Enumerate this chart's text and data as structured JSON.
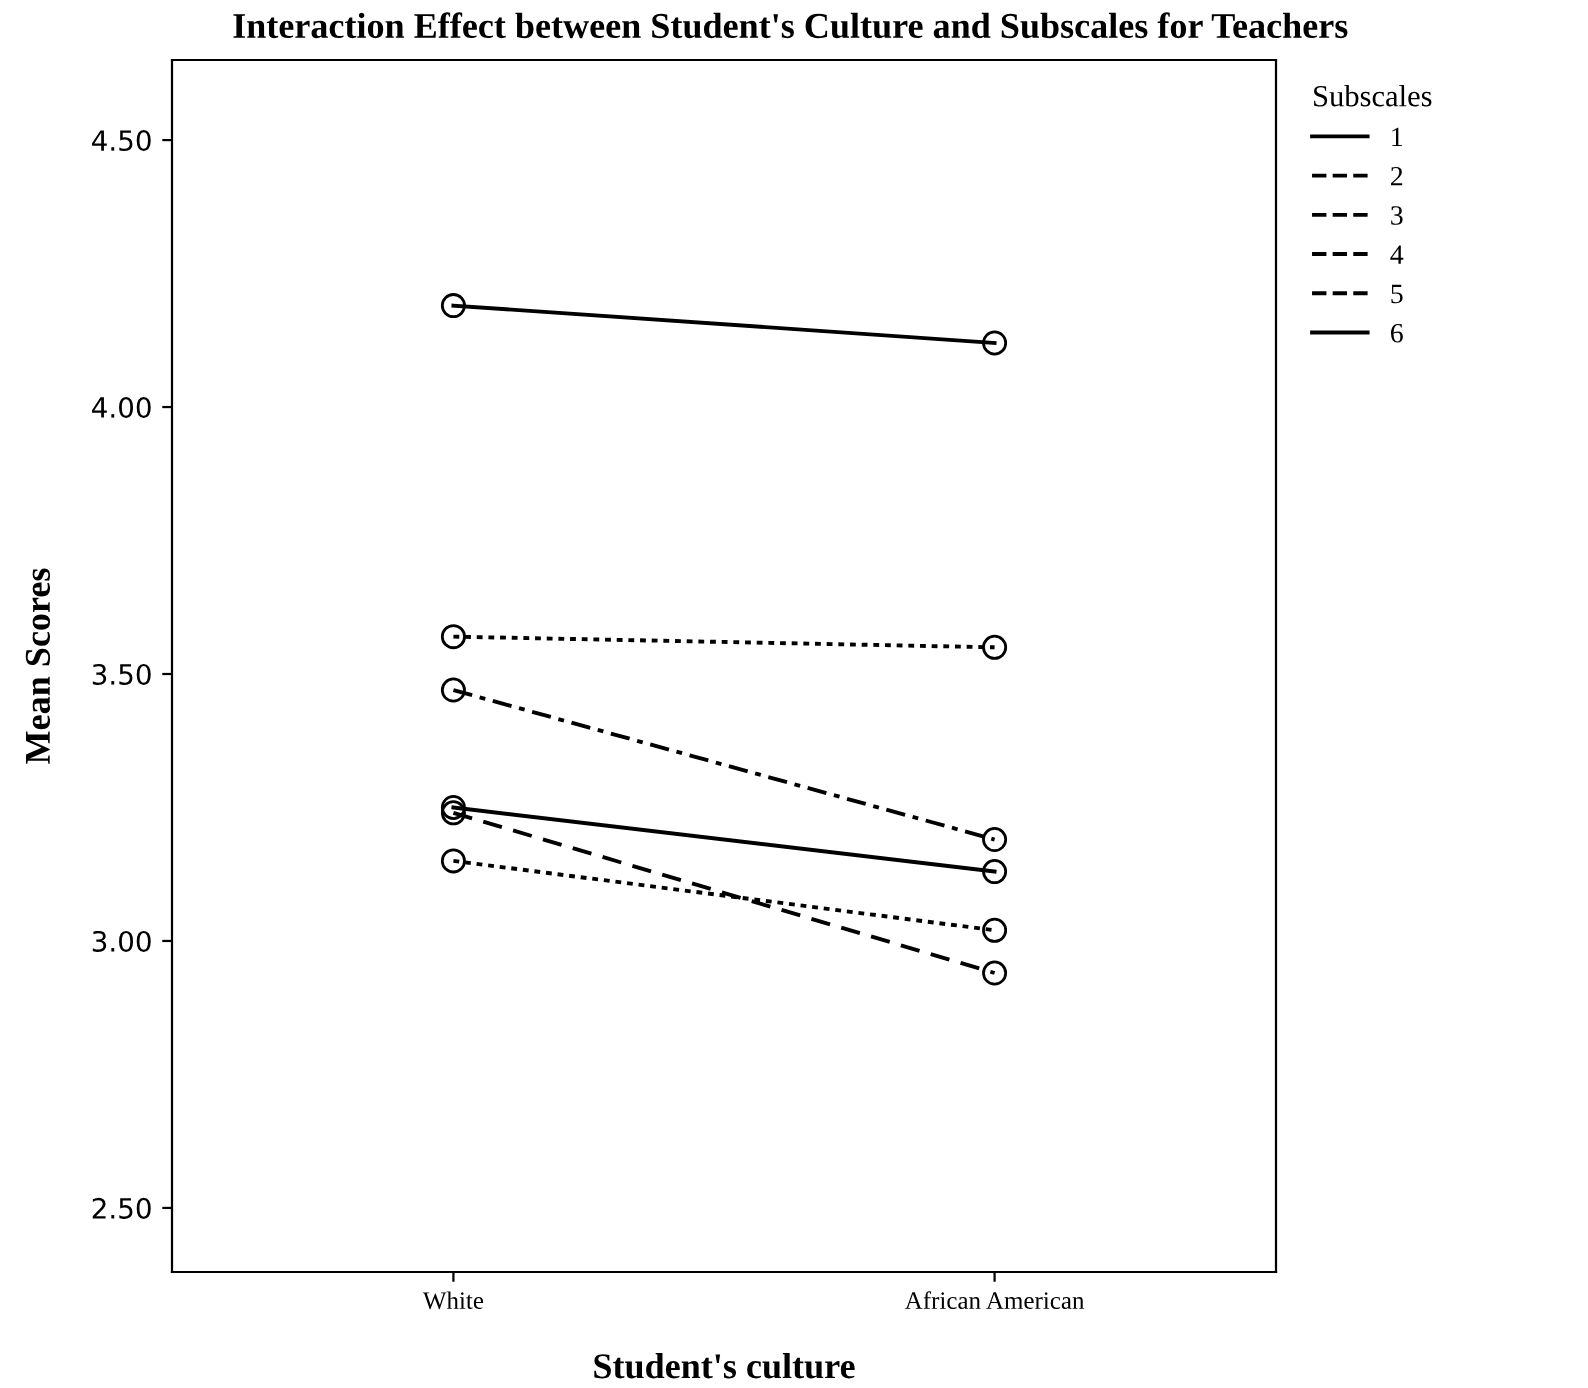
{
  "chart_data": {
    "type": "line",
    "title": "Interaction Effect between Student's Culture and Subscales for Teachers",
    "xlabel": "Student's culture",
    "ylabel": "Mean Scores",
    "legend_title": "Subscales",
    "categories": [
      "White",
      "African American"
    ],
    "series": [
      {
        "name": "1",
        "color": "#000000",
        "line_style": "solid",
        "values": [
          4.19,
          4.12
        ]
      },
      {
        "name": "2",
        "color": "#000000",
        "line_style": "dotted",
        "values": [
          3.57,
          3.55
        ]
      },
      {
        "name": "3",
        "color": "#000000",
        "line_style": "dashed",
        "values": [
          3.24,
          2.94
        ]
      },
      {
        "name": "4",
        "color": "#000000",
        "line_style": "dashdot",
        "values": [
          3.47,
          3.19
        ]
      },
      {
        "name": "5",
        "color": "#000000",
        "line_style": "dotted",
        "values": [
          3.15,
          3.02
        ]
      },
      {
        "name": "6",
        "color": "#000000",
        "line_style": "solid",
        "values": [
          3.25,
          3.13
        ]
      }
    ],
    "ylim": [
      2.38,
      4.65
    ],
    "yticks": [
      {
        "value": 2.5,
        "label": "2.50"
      },
      {
        "value": 3.0,
        "label": "3.00"
      },
      {
        "value": 3.5,
        "label": "3.50"
      },
      {
        "value": 4.0,
        "label": "4.00"
      },
      {
        "value": 4.5,
        "label": "4.50"
      }
    ],
    "marker": "circle",
    "legend": "right",
    "grid": false
  }
}
